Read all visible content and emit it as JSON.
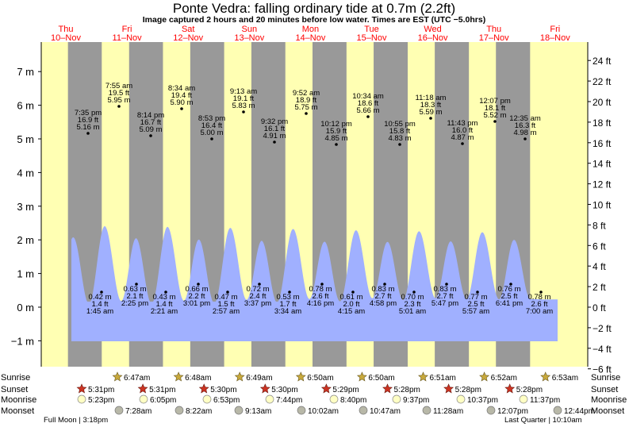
{
  "title": "Ponte Vedra: falling  ordinary tide at 0.7m (2.2ft)",
  "subtitle": "Image captured 2 hours and 20 minutes before low water. Times are EST (UTC −5.0hrs)",
  "colors": {
    "day": "#ffffb3",
    "night": "#999999",
    "water": "#a0b0ff",
    "date_text": "#ff0000",
    "star_fill": "#c8a93c",
    "star_red": "#cc3322",
    "moon_fill": "#ffffc4",
    "moonset_fill": "#b8b8a8"
  },
  "days": [
    {
      "weekday": "Thu",
      "date": "10–Nov"
    },
    {
      "weekday": "Fri",
      "date": "11–Nov"
    },
    {
      "weekday": "Sat",
      "date": "12–Nov"
    },
    {
      "weekday": "Sun",
      "date": "13–Nov"
    },
    {
      "weekday": "Mon",
      "date": "14–Nov"
    },
    {
      "weekday": "Tue",
      "date": "15–Nov"
    },
    {
      "weekday": "Wed",
      "date": "16–Nov"
    },
    {
      "weekday": "Thu",
      "date": "17–Nov"
    },
    {
      "weekday": "Fri",
      "date": "18–Nov"
    }
  ],
  "chart_data": {
    "type": "area",
    "ylim_m": [
      -1.5,
      8
    ],
    "ylim_ft": [
      -6,
      25
    ],
    "y_ticks_m": [
      "−1 m",
      "0 m",
      "1 m",
      "2 m",
      "3 m",
      "4 m",
      "5 m",
      "6 m",
      "7 m"
    ],
    "y_ticks_ft": [
      "−6 ft",
      "−4 ft",
      "−2 ft",
      "0 ft",
      "2 ft",
      "4 ft",
      "6 ft",
      "8 ft",
      "10 ft",
      "12 ft",
      "14 ft",
      "16 ft",
      "18 ft",
      "20 ft",
      "22 ft",
      "24 ft"
    ],
    "high_tides": [
      {
        "time": "7:35 pm",
        "ft": "16.9 ft",
        "m": "5.16 m",
        "value": 5.16
      },
      {
        "time": "7:55 am",
        "ft": "19.5 ft",
        "m": "5.95 m",
        "value": 5.95
      },
      {
        "time": "8:14 pm",
        "ft": "16.7 ft",
        "m": "5.09 m",
        "value": 5.09
      },
      {
        "time": "8:34 am",
        "ft": "19.4 ft",
        "m": "5.90 m",
        "value": 5.9
      },
      {
        "time": "8:53 pm",
        "ft": "16.4 ft",
        "m": "5.00 m",
        "value": 5.0
      },
      {
        "time": "9:13 am",
        "ft": "19.1 ft",
        "m": "5.83 m",
        "value": 5.83
      },
      {
        "time": "9:32 pm",
        "ft": "16.1 ft",
        "m": "4.91 m",
        "value": 4.91
      },
      {
        "time": "9:52 am",
        "ft": "18.9 ft",
        "m": "5.75 m",
        "value": 5.75
      },
      {
        "time": "10:12 pm",
        "ft": "15.9 ft",
        "m": "4.85 m",
        "value": 4.85
      },
      {
        "time": "10:34 am",
        "ft": "18.6 ft",
        "m": "5.66 m",
        "value": 5.66
      },
      {
        "time": "10:55 pm",
        "ft": "15.8 ft",
        "m": "4.83 m",
        "value": 4.83
      },
      {
        "time": "11:18 am",
        "ft": "18.3 ft",
        "m": "5.59 m",
        "value": 5.59
      },
      {
        "time": "11:43 pm",
        "ft": "16.0 ft",
        "m": "4.87 m",
        "value": 4.87
      },
      {
        "time": "12:07 pm",
        "ft": "18.1 ft",
        "m": "5.52 m",
        "value": 5.52
      },
      {
        "time": "12:35 am",
        "ft": "16.3 ft",
        "m": "4.98 m",
        "value": 4.98
      }
    ],
    "low_tides": [
      {
        "time": "1:45 am",
        "ft": "1.4 ft",
        "m": "0.42 m",
        "value": 0.42
      },
      {
        "time": "2:25 pm",
        "ft": "2.1 ft",
        "m": "0.63 m",
        "value": 0.63
      },
      {
        "time": "2:21 am",
        "ft": "1.4 ft",
        "m": "0.43 m",
        "value": 0.43
      },
      {
        "time": "3:01 pm",
        "ft": "2.2 ft",
        "m": "0.66 m",
        "value": 0.66
      },
      {
        "time": "2:57 am",
        "ft": "1.5 ft",
        "m": "0.47 m",
        "value": 0.47
      },
      {
        "time": "3:37 pm",
        "ft": "2.4 ft",
        "m": "0.72 m",
        "value": 0.72
      },
      {
        "time": "3:34 am",
        "ft": "1.7 ft",
        "m": "0.53 m",
        "value": 0.53
      },
      {
        "time": "4:16 pm",
        "ft": "2.6 ft",
        "m": "0.78 m",
        "value": 0.78
      },
      {
        "time": "4:15 am",
        "ft": "2.0 ft",
        "m": "0.61 m",
        "value": 0.61
      },
      {
        "time": "4:58 pm",
        "ft": "2.7 ft",
        "m": "0.83 m",
        "value": 0.83
      },
      {
        "time": "5:01 am",
        "ft": "2.3 ft",
        "m": "0.70 m",
        "value": 0.7
      },
      {
        "time": "5:47 pm",
        "ft": "2.7 ft",
        "m": "0.83 m",
        "value": 0.83
      },
      {
        "time": "5:57 am",
        "ft": "2.5 ft",
        "m": "0.77 m",
        "value": 0.77
      },
      {
        "time": "6:41 pm",
        "ft": "2.5 ft",
        "m": "0.76 m",
        "value": 0.76
      },
      {
        "time": "7:00 am",
        "ft": "2.6 ft",
        "m": "0.78 m",
        "value": 0.78
      }
    ],
    "grid": false
  },
  "legend_labels": {
    "sunrise": "Sunrise",
    "sunset": "Sunset",
    "moonrise": "Moonrise",
    "moonset": "Moonset"
  },
  "sunrise_times": [
    "6:47am",
    "6:48am",
    "6:49am",
    "6:50am",
    "6:50am",
    "6:51am",
    "6:52am",
    "6:53am"
  ],
  "sunset_times": [
    "5:31pm",
    "5:31pm",
    "5:30pm",
    "5:30pm",
    "5:29pm",
    "5:28pm",
    "5:28pm",
    "5:28pm"
  ],
  "moonrise_times": [
    "5:23pm",
    "6:05pm",
    "6:53pm",
    "7:44pm",
    "8:40pm",
    "9:37pm",
    "10:37pm",
    "11:37pm"
  ],
  "moonset_times": [
    "7:28am",
    "8:22am",
    "9:13am",
    "10:02am",
    "10:47am",
    "11:28am",
    "12:07pm",
    "12:44pm"
  ],
  "moon_phases": {
    "left": "Full Moon | 3:18pm",
    "right": "Last Quarter | 10:10am"
  }
}
